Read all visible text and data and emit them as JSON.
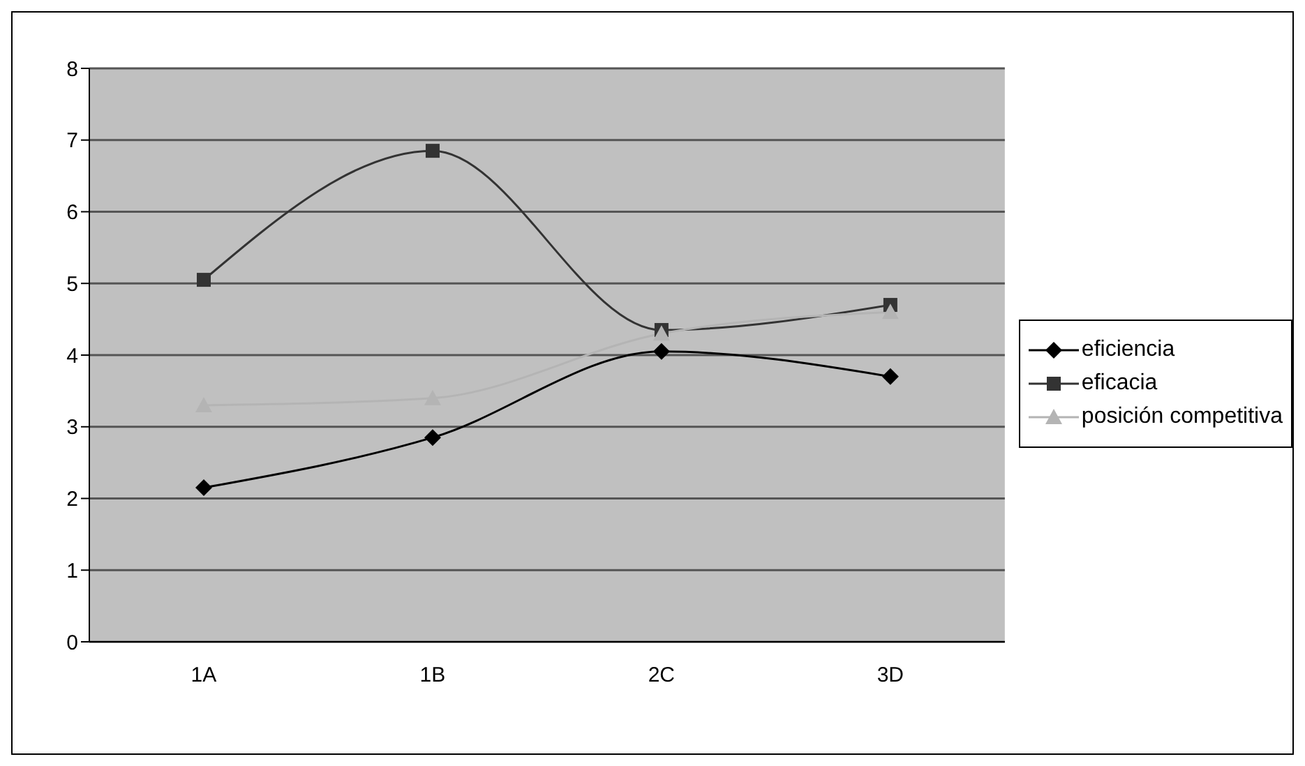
{
  "chart_data": {
    "type": "line",
    "categories": [
      "1A",
      "1B",
      "2C",
      "3D"
    ],
    "series": [
      {
        "name": "eficiencia",
        "color": "#000000",
        "marker": "diamond",
        "values": [
          2.15,
          2.85,
          4.05,
          3.7
        ]
      },
      {
        "name": "eficacia",
        "color": "#333333",
        "marker": "square",
        "values": [
          5.05,
          6.85,
          4.35,
          4.7
        ]
      },
      {
        "name": "posición competitiva",
        "color": "#b4b4b4",
        "marker": "triangle",
        "values": [
          3.3,
          3.4,
          4.3,
          4.6
        ]
      }
    ],
    "ylim": [
      0,
      8
    ],
    "yticks": [
      0,
      1,
      2,
      3,
      4,
      5,
      6,
      7,
      8
    ],
    "grid": "y",
    "legend": "right",
    "line_style": "solid"
  }
}
